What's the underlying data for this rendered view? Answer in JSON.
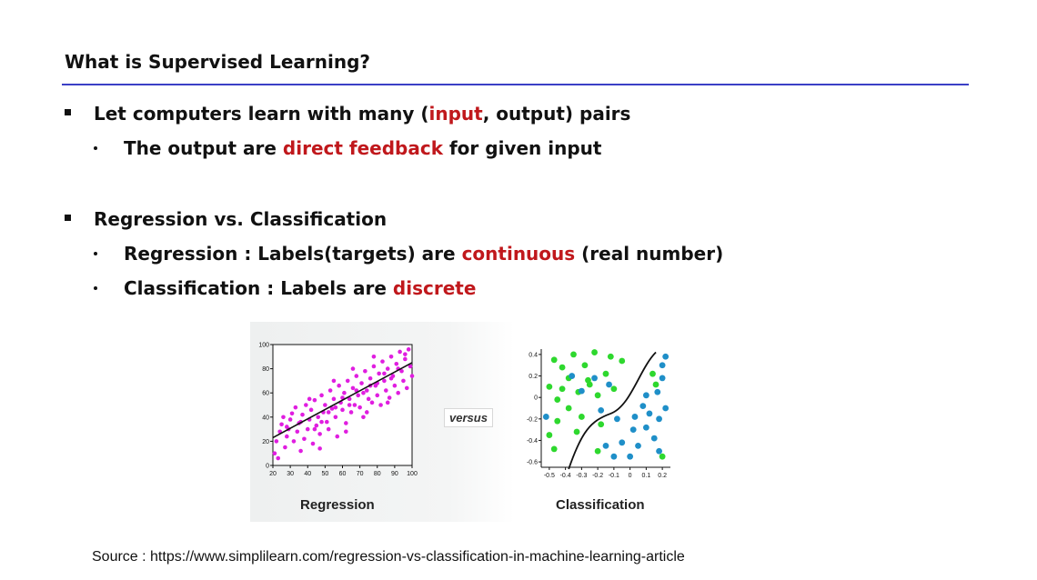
{
  "slide": {
    "title": "What is Supervised Learning?",
    "bullet1": {
      "before": "Let computers learn with many (",
      "highlight": "input",
      "after": ", output) pairs",
      "sub": {
        "before": "The output are ",
        "highlight": "direct feedback",
        "after": " for given input"
      }
    },
    "bullet2": {
      "text": "Regression vs. Classification",
      "sub1": {
        "before": "Regression : Labels(targets) are ",
        "highlight": "continuous",
        "after": " (real number)"
      },
      "sub2": {
        "before": "Classification : Labels are ",
        "highlight": "discrete",
        "after": ""
      }
    },
    "source": "Source : https://www.simplilearn.com/regression-vs-classification-in-machine-learning-article"
  },
  "figure": {
    "versus": "versus",
    "regression_caption": "Regression",
    "classification_caption": "Classification"
  },
  "colors": {
    "highlight": "#c0181c",
    "rule": "#3b3fc6",
    "magenta": "#e01ee0",
    "green": "#2ed82e",
    "blue": "#1f8fc8"
  },
  "chart_data": [
    {
      "type": "scatter",
      "title": "Regression",
      "x_ticks": [
        20,
        30,
        40,
        50,
        60,
        70,
        80,
        90,
        100
      ],
      "y_ticks": [
        0,
        20,
        40,
        60,
        80,
        100
      ],
      "xlim": [
        20,
        100
      ],
      "ylim": [
        0,
        100
      ],
      "trend_line": [
        [
          20,
          23
        ],
        [
          100,
          85
        ]
      ],
      "series": [
        {
          "values": [
            [
              21,
              10
            ],
            [
              23,
              6
            ],
            [
              22,
              20
            ],
            [
              24,
              28
            ],
            [
              25,
              34
            ],
            [
              26,
              40
            ],
            [
              27,
              15
            ],
            [
              28,
              24
            ],
            [
              29,
              30
            ],
            [
              30,
              38
            ],
            [
              31,
              43
            ],
            [
              32,
              20
            ],
            [
              33,
              48
            ],
            [
              34,
              28
            ],
            [
              35,
              35
            ],
            [
              36,
              12
            ],
            [
              37,
              42
            ],
            [
              38,
              22
            ],
            [
              39,
              50
            ],
            [
              40,
              30
            ],
            [
              41,
              38
            ],
            [
              42,
              46
            ],
            [
              43,
              18
            ],
            [
              44,
              54
            ],
            [
              45,
              33
            ],
            [
              46,
              40
            ],
            [
              47,
              26
            ],
            [
              48,
              58
            ],
            [
              49,
              44
            ],
            [
              50,
              50
            ],
            [
              51,
              36
            ],
            [
              52,
              30
            ],
            [
              53,
              62
            ],
            [
              54,
              47
            ],
            [
              55,
              55
            ],
            [
              56,
              40
            ],
            [
              57,
              24
            ],
            [
              58,
              66
            ],
            [
              59,
              52
            ],
            [
              60,
              46
            ],
            [
              61,
              60
            ],
            [
              62,
              35
            ],
            [
              63,
              70
            ],
            [
              64,
              55
            ],
            [
              65,
              44
            ],
            [
              66,
              64
            ],
            [
              67,
              50
            ],
            [
              68,
              74
            ],
            [
              69,
              58
            ],
            [
              70,
              48
            ],
            [
              71,
              68
            ],
            [
              72,
              40
            ],
            [
              73,
              78
            ],
            [
              74,
              62
            ],
            [
              75,
              55
            ],
            [
              76,
              72
            ],
            [
              77,
              52
            ],
            [
              78,
              82
            ],
            [
              79,
              66
            ],
            [
              80,
              58
            ],
            [
              81,
              76
            ],
            [
              82,
              50
            ],
            [
              83,
              86
            ],
            [
              84,
              70
            ],
            [
              85,
              62
            ],
            [
              86,
              80
            ],
            [
              87,
              56
            ],
            [
              88,
              90
            ],
            [
              89,
              74
            ],
            [
              90,
              66
            ],
            [
              91,
              84
            ],
            [
              92,
              60
            ],
            [
              93,
              94
            ],
            [
              94,
              78
            ],
            [
              95,
              70
            ],
            [
              96,
              88
            ],
            [
              97,
              64
            ],
            [
              98,
              96
            ],
            [
              99,
              82
            ],
            [
              100,
              74
            ],
            [
              44,
              30
            ],
            [
              52,
              44
            ],
            [
              60,
              56
            ],
            [
              68,
              62
            ],
            [
              76,
              66
            ],
            [
              84,
              76
            ],
            [
              92,
              80
            ],
            [
              36,
              36
            ],
            [
              28,
              32
            ],
            [
              48,
              36
            ],
            [
              56,
              48
            ],
            [
              64,
              50
            ],
            [
              72,
              60
            ],
            [
              80,
              68
            ],
            [
              88,
              72
            ],
            [
              96,
              92
            ],
            [
              41,
              55
            ],
            [
              55,
              70
            ],
            [
              66,
              80
            ],
            [
              78,
              90
            ],
            [
              47,
              14
            ],
            [
              62,
              28
            ],
            [
              74,
              44
            ],
            [
              86,
              52
            ]
          ]
        }
      ]
    },
    {
      "type": "scatter",
      "title": "Classification",
      "x_ticks": [
        -0.5,
        -0.4,
        -0.3,
        -0.2,
        -0.1,
        0,
        0.1,
        0.2
      ],
      "y_ticks": [
        0.4,
        0.2,
        0,
        -0.2,
        -0.4,
        -0.6
      ],
      "xlim": [
        -0.55,
        0.25
      ],
      "ylim": [
        -0.65,
        0.45
      ],
      "series": [
        {
          "color": "green",
          "values": [
            [
              -0.5,
              0.1
            ],
            [
              -0.47,
              0.35
            ],
            [
              -0.45,
              -0.02
            ],
            [
              -0.5,
              -0.35
            ],
            [
              -0.47,
              -0.48
            ],
            [
              -0.42,
              0.28
            ],
            [
              -0.38,
              0.18
            ],
            [
              -0.35,
              0.4
            ],
            [
              -0.32,
              0.05
            ],
            [
              -0.3,
              -0.18
            ],
            [
              -0.28,
              0.3
            ],
            [
              -0.25,
              0.12
            ],
            [
              -0.22,
              0.42
            ],
            [
              -0.2,
              0.02
            ],
            [
              -0.18,
              -0.25
            ],
            [
              -0.15,
              0.22
            ],
            [
              -0.12,
              0.38
            ],
            [
              -0.1,
              0.08
            ],
            [
              -0.38,
              -0.1
            ],
            [
              -0.42,
              0.08
            ],
            [
              -0.33,
              -0.32
            ],
            [
              -0.2,
              -0.5
            ],
            [
              -0.26,
              0.16
            ],
            [
              0.14,
              0.22
            ],
            [
              0.16,
              0.12
            ],
            [
              0.2,
              -0.55
            ],
            [
              -0.05,
              0.34
            ],
            [
              -0.45,
              -0.22
            ]
          ]
        },
        {
          "color": "blue",
          "values": [
            [
              -0.52,
              -0.18
            ],
            [
              -0.36,
              0.2
            ],
            [
              -0.3,
              0.06
            ],
            [
              -0.22,
              0.18
            ],
            [
              -0.18,
              -0.12
            ],
            [
              -0.13,
              0.12
            ],
            [
              -0.08,
              -0.2
            ],
            [
              0.02,
              -0.3
            ],
            [
              0.05,
              -0.45
            ],
            [
              0.1,
              -0.28
            ],
            [
              0.15,
              -0.38
            ],
            [
              0.18,
              -0.5
            ],
            [
              0.2,
              0.3
            ],
            [
              0.22,
              0.38
            ],
            [
              0.2,
              0.18
            ],
            [
              0.17,
              0.05
            ],
            [
              0.22,
              -0.1
            ],
            [
              0.12,
              -0.15
            ],
            [
              0.08,
              -0.08
            ],
            [
              0.0,
              -0.55
            ],
            [
              -0.05,
              -0.42
            ],
            [
              -0.1,
              -0.55
            ],
            [
              0.18,
              -0.2
            ],
            [
              0.1,
              0.02
            ],
            [
              -0.15,
              -0.45
            ],
            [
              0.03,
              -0.18
            ]
          ]
        }
      ]
    }
  ]
}
